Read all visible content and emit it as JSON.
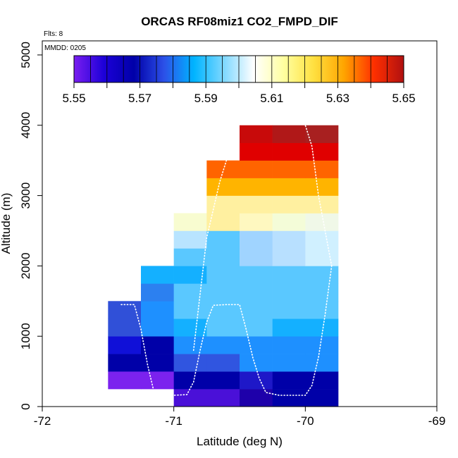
{
  "chart_data": {
    "type": "heatmap",
    "title": "ORCAS RF08miz1 CO2_FMPD_DIF",
    "notes": [
      "Flts: 8",
      "MMDD: 0205"
    ],
    "xlabel": "Latitude (deg N)",
    "ylabel": "Altitude (m)",
    "xlim": [
      -72,
      -69
    ],
    "ylim": [
      0,
      5200
    ],
    "x_ticks": [
      -72,
      -71,
      -70,
      -69
    ],
    "y_ticks": [
      0,
      1000,
      2000,
      3000,
      4000,
      5000
    ],
    "grid": false,
    "cell_width_deg": 0.25,
    "cell_height_m": 250,
    "colorbar": {
      "min": 5.55,
      "max": 5.65,
      "ticks": [
        5.55,
        5.57,
        5.59,
        5.61,
        5.63,
        5.65
      ],
      "colors": [
        "#7a1ef0",
        "#1c00d8",
        "#0000a8",
        "#2c50e8",
        "#00b4ff",
        "#7fd8ff",
        "#ffffff",
        "#ffffa0",
        "#ffe040",
        "#ffa500",
        "#ff3000",
        "#b01010"
      ]
    },
    "cells": [
      {
        "x": -71.5,
        "y": 250,
        "color": "#7b22ee"
      },
      {
        "x": -71.25,
        "y": 250,
        "color": "#7b22ee"
      },
      {
        "x": -71.0,
        "y": 0,
        "color": "#4a10d8"
      },
      {
        "x": -71.0,
        "y": 250,
        "color": "#0000a8"
      },
      {
        "x": -70.75,
        "y": 0,
        "color": "#4a10d8"
      },
      {
        "x": -70.75,
        "y": 250,
        "color": "#0000a8"
      },
      {
        "x": -70.5,
        "y": 0,
        "color": "#1e00aa"
      },
      {
        "x": -70.5,
        "y": 250,
        "color": "#1e18c8"
      },
      {
        "x": -70.25,
        "y": 0,
        "color": "#0000a8"
      },
      {
        "x": -70.25,
        "y": 250,
        "color": "#0000a8"
      },
      {
        "x": -70.0,
        "y": 0,
        "color": "#0000a8"
      },
      {
        "x": -70.0,
        "y": 250,
        "color": "#0000a8"
      },
      {
        "x": -71.5,
        "y": 500,
        "color": "#0000a8"
      },
      {
        "x": -71.25,
        "y": 500,
        "color": "#0000a8"
      },
      {
        "x": -71.0,
        "y": 500,
        "color": "#3055e0"
      },
      {
        "x": -70.75,
        "y": 500,
        "color": "#3055e0"
      },
      {
        "x": -70.5,
        "y": 500,
        "color": "#1e90ff"
      },
      {
        "x": -70.25,
        "y": 500,
        "color": "#1e90ff"
      },
      {
        "x": -70.0,
        "y": 500,
        "color": "#1e90ff"
      },
      {
        "x": -71.5,
        "y": 750,
        "color": "#1010d8"
      },
      {
        "x": -71.25,
        "y": 750,
        "color": "#0000a8"
      },
      {
        "x": -71.0,
        "y": 750,
        "color": "#1e90ff"
      },
      {
        "x": -70.75,
        "y": 750,
        "color": "#1e90ff"
      },
      {
        "x": -70.5,
        "y": 750,
        "color": "#1e90ff"
      },
      {
        "x": -70.25,
        "y": 750,
        "color": "#1e90ff"
      },
      {
        "x": -70.0,
        "y": 750,
        "color": "#1e90ff"
      },
      {
        "x": -71.5,
        "y": 1000,
        "color": "#3050d8"
      },
      {
        "x": -71.25,
        "y": 1000,
        "color": "#1e90ff"
      },
      {
        "x": -71.0,
        "y": 1000,
        "color": "#14b0ff"
      },
      {
        "x": -70.75,
        "y": 1000,
        "color": "#5ac8ff"
      },
      {
        "x": -70.5,
        "y": 1000,
        "color": "#5ac8ff"
      },
      {
        "x": -70.25,
        "y": 1000,
        "color": "#14b0ff"
      },
      {
        "x": -70.0,
        "y": 1000,
        "color": "#14b0ff"
      },
      {
        "x": -71.5,
        "y": 1250,
        "color": "#3050d8"
      },
      {
        "x": -71.25,
        "y": 1250,
        "color": "#1e90ff"
      },
      {
        "x": -71.0,
        "y": 1250,
        "color": "#5ac8ff"
      },
      {
        "x": -70.75,
        "y": 1250,
        "color": "#5ac8ff"
      },
      {
        "x": -70.5,
        "y": 1250,
        "color": "#5ac8ff"
      },
      {
        "x": -70.25,
        "y": 1250,
        "color": "#5ac8ff"
      },
      {
        "x": -70.0,
        "y": 1250,
        "color": "#5ac8ff"
      },
      {
        "x": -71.25,
        "y": 1500,
        "color": "#2c80f0"
      },
      {
        "x": -71.0,
        "y": 1500,
        "color": "#5ac8ff"
      },
      {
        "x": -70.75,
        "y": 1500,
        "color": "#5ac8ff"
      },
      {
        "x": -70.5,
        "y": 1500,
        "color": "#5ac8ff"
      },
      {
        "x": -70.25,
        "y": 1500,
        "color": "#5ac8ff"
      },
      {
        "x": -70.0,
        "y": 1500,
        "color": "#5ac8ff"
      },
      {
        "x": -71.25,
        "y": 1750,
        "color": "#14b0ff"
      },
      {
        "x": -71.0,
        "y": 1750,
        "color": "#14b0ff"
      },
      {
        "x": -70.75,
        "y": 1750,
        "color": "#5ac8ff"
      },
      {
        "x": -70.5,
        "y": 1750,
        "color": "#5ac8ff"
      },
      {
        "x": -70.25,
        "y": 1750,
        "color": "#5ac8ff"
      },
      {
        "x": -70.0,
        "y": 1750,
        "color": "#5ac8ff"
      },
      {
        "x": -71.0,
        "y": 2000,
        "color": "#5ac8ff"
      },
      {
        "x": -70.75,
        "y": 2000,
        "color": "#5ac8ff"
      },
      {
        "x": -70.5,
        "y": 2000,
        "color": "#a0d4ff"
      },
      {
        "x": -70.25,
        "y": 2000,
        "color": "#b8e0ff"
      },
      {
        "x": -70.0,
        "y": 2000,
        "color": "#d0f0ff"
      },
      {
        "x": -71.0,
        "y": 2250,
        "color": "#b8e4ff"
      },
      {
        "x": -70.75,
        "y": 2250,
        "color": "#5ac8ff"
      },
      {
        "x": -70.5,
        "y": 2250,
        "color": "#a0d4ff"
      },
      {
        "x": -70.25,
        "y": 2250,
        "color": "#b8e0ff"
      },
      {
        "x": -70.0,
        "y": 2250,
        "color": "#d0f0ff"
      },
      {
        "x": -71.0,
        "y": 2500,
        "color": "#f8fcd0"
      },
      {
        "x": -70.75,
        "y": 2500,
        "color": "#fff0a0"
      },
      {
        "x": -70.5,
        "y": 2500,
        "color": "#fef8c0"
      },
      {
        "x": -70.25,
        "y": 2500,
        "color": "#f4fcd8"
      },
      {
        "x": -70.0,
        "y": 2500,
        "color": "#f0f8e8"
      },
      {
        "x": -70.75,
        "y": 2750,
        "color": "#fff0a0"
      },
      {
        "x": -70.5,
        "y": 2750,
        "color": "#fff0a0"
      },
      {
        "x": -70.25,
        "y": 2750,
        "color": "#fff0a0"
      },
      {
        "x": -70.0,
        "y": 2750,
        "color": "#fff0a0"
      },
      {
        "x": -70.75,
        "y": 3000,
        "color": "#ffb400"
      },
      {
        "x": -70.5,
        "y": 3000,
        "color": "#ffb400"
      },
      {
        "x": -70.25,
        "y": 3000,
        "color": "#ffb400"
      },
      {
        "x": -70.0,
        "y": 3000,
        "color": "#ffb400"
      },
      {
        "x": -70.75,
        "y": 3250,
        "color": "#ff6400"
      },
      {
        "x": -70.5,
        "y": 3250,
        "color": "#ff6400"
      },
      {
        "x": -70.25,
        "y": 3250,
        "color": "#ff6400"
      },
      {
        "x": -70.0,
        "y": 3250,
        "color": "#ff6400"
      },
      {
        "x": -70.5,
        "y": 3500,
        "color": "#e00000"
      },
      {
        "x": -70.25,
        "y": 3500,
        "color": "#e00000"
      },
      {
        "x": -70.0,
        "y": 3500,
        "color": "#e00000"
      },
      {
        "x": -70.5,
        "y": 3750,
        "color": "#c80a0a"
      },
      {
        "x": -70.25,
        "y": 3750,
        "color": "#b01818"
      },
      {
        "x": -70.0,
        "y": 3750,
        "color": "#a82020"
      }
    ],
    "flight_track": [
      [
        -71.4,
        1450
      ],
      [
        -71.3,
        1450
      ],
      [
        -71.25,
        1100
      ],
      [
        -71.2,
        600
      ],
      [
        -71.15,
        200
      ],
      [
        -71.1,
        160
      ],
      [
        -71.0,
        160
      ],
      [
        -70.9,
        170
      ],
      [
        -70.85,
        350
      ],
      [
        -70.8,
        800
      ],
      [
        -70.75,
        1200
      ],
      [
        -70.7,
        1440
      ],
      [
        -70.6,
        1450
      ],
      [
        -70.5,
        1450
      ],
      [
        -70.45,
        1100
      ],
      [
        -70.4,
        700
      ],
      [
        -70.35,
        400
      ],
      [
        -70.3,
        200
      ],
      [
        -70.2,
        160
      ],
      [
        -70.0,
        160
      ],
      [
        -69.95,
        300
      ],
      [
        -69.9,
        700
      ],
      [
        -69.85,
        1300
      ],
      [
        -69.8,
        2000
      ]
    ],
    "flight_track_2": [
      [
        -70.85,
        800
      ],
      [
        -70.8,
        1600
      ],
      [
        -70.75,
        2400
      ],
      [
        -70.65,
        3200
      ],
      [
        -70.55,
        3800
      ],
      [
        -70.5,
        4000
      ]
    ],
    "flight_track_3": [
      [
        -69.8,
        2000
      ],
      [
        -69.9,
        3000
      ],
      [
        -69.95,
        3700
      ],
      [
        -70.0,
        4000
      ]
    ]
  }
}
